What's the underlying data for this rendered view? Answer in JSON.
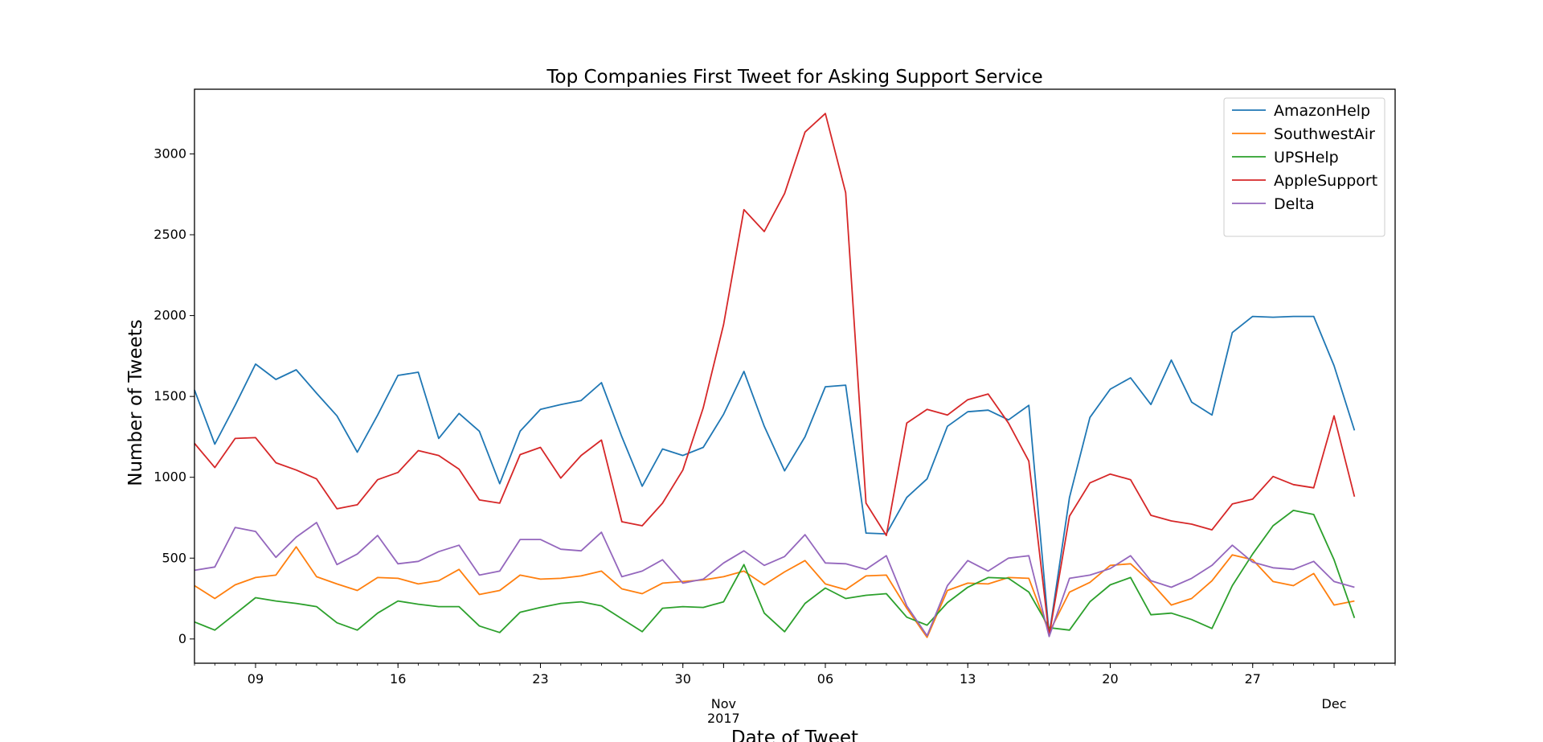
{
  "chart_data": {
    "type": "line",
    "title": "Top Companies First Tweet for Asking Support Service",
    "xlabel": "Date of Tweet",
    "ylabel": "Number of Tweets",
    "x_start": "2017-10-06",
    "x_end": "2017-12-04",
    "ylim": [
      -150,
      3400
    ],
    "y_ticks": [
      0,
      500,
      1000,
      1500,
      2000,
      2500,
      3000
    ],
    "x_ticks": [
      {
        "date": "2017-10-09",
        "label": "09"
      },
      {
        "date": "2017-10-16",
        "label": "16"
      },
      {
        "date": "2017-10-23",
        "label": "23"
      },
      {
        "date": "2017-10-30",
        "label": "30"
      },
      {
        "date": "2017-11-06",
        "label": "06"
      },
      {
        "date": "2017-11-13",
        "label": "13"
      },
      {
        "date": "2017-11-20",
        "label": "20"
      },
      {
        "date": "2017-11-27",
        "label": "27"
      }
    ],
    "x_major_ticks": [
      {
        "date": "2017-11-01",
        "label": "Nov",
        "sublabel": "2017"
      },
      {
        "date": "2017-12-01",
        "label": "Dec",
        "sublabel": ""
      }
    ],
    "grid": false,
    "legend_position": "top-right",
    "series": [
      {
        "name": "AmazonHelp",
        "color": "#1f77b4",
        "values": [
          1540,
          1205,
          1445,
          1700,
          1605,
          1665,
          1520,
          1380,
          1155,
          1385,
          1630,
          1650,
          1240,
          1395,
          1285,
          960,
          1285,
          1420,
          1450,
          1475,
          1585,
          1250,
          945,
          1175,
          1135,
          1185,
          1390,
          1655,
          1315,
          1040,
          1250,
          1560,
          1570,
          655,
          650,
          875,
          990,
          1315,
          1405,
          1415,
          1355,
          1445,
          25,
          875,
          1370,
          1545,
          1615,
          1450,
          1725,
          1465,
          1385,
          1895,
          1995,
          1990,
          1995,
          1995,
          1690,
          1290
        ]
      },
      {
        "name": "SouthwestAir",
        "color": "#ff7f0e",
        "values": [
          330,
          250,
          335,
          380,
          395,
          570,
          385,
          340,
          300,
          380,
          375,
          340,
          360,
          430,
          275,
          300,
          395,
          370,
          375,
          390,
          420,
          310,
          280,
          345,
          355,
          365,
          385,
          420,
          335,
          415,
          485,
          340,
          305,
          390,
          395,
          190,
          10,
          300,
          345,
          340,
          380,
          375,
          40,
          290,
          350,
          455,
          465,
          350,
          210,
          250,
          360,
          520,
          490,
          355,
          330,
          405,
          210,
          235
        ]
      },
      {
        "name": "UPSHelp",
        "color": "#2ca02c",
        "values": [
          105,
          55,
          155,
          255,
          235,
          220,
          200,
          100,
          55,
          160,
          235,
          215,
          200,
          200,
          80,
          40,
          165,
          195,
          220,
          230,
          205,
          125,
          45,
          190,
          200,
          195,
          230,
          460,
          160,
          45,
          220,
          315,
          250,
          270,
          280,
          135,
          85,
          225,
          320,
          380,
          375,
          290,
          70,
          55,
          230,
          335,
          380,
          150,
          160,
          120,
          65,
          330,
          525,
          700,
          795,
          770,
          490,
          130
        ]
      },
      {
        "name": "AppleSupport",
        "color": "#d62728",
        "values": [
          1210,
          1060,
          1240,
          1245,
          1090,
          1045,
          990,
          805,
          830,
          985,
          1030,
          1165,
          1135,
          1050,
          860,
          840,
          1140,
          1185,
          995,
          1135,
          1230,
          725,
          700,
          840,
          1045,
          1430,
          1945,
          2655,
          2520,
          2755,
          3135,
          3250,
          2760,
          840,
          640,
          1335,
          1420,
          1385,
          1480,
          1515,
          1335,
          1100,
          20,
          760,
          965,
          1020,
          985,
          765,
          730,
          710,
          675,
          835,
          865,
          1005,
          955,
          935,
          1380,
          880
        ]
      },
      {
        "name": "Delta",
        "color": "#9467bd",
        "values": [
          425,
          445,
          690,
          665,
          505,
          630,
          720,
          460,
          525,
          640,
          465,
          480,
          540,
          580,
          395,
          420,
          615,
          615,
          555,
          545,
          660,
          385,
          420,
          490,
          345,
          370,
          470,
          545,
          455,
          510,
          645,
          470,
          465,
          430,
          515,
          205,
          20,
          330,
          485,
          420,
          500,
          515,
          15,
          375,
          395,
          435,
          515,
          360,
          320,
          375,
          455,
          580,
          475,
          440,
          430,
          480,
          355,
          320
        ]
      }
    ]
  }
}
